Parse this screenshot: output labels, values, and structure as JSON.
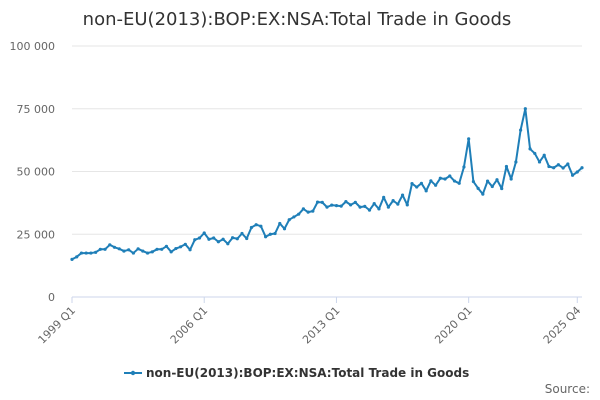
{
  "colors": {
    "series": "#1f7fb8",
    "grid": "#e6e6e6",
    "axis": "#ccd6eb"
  },
  "chart_data": {
    "type": "line",
    "title": "non-EU(2013):BOP:EX:NSA:Total Trade in Goods",
    "xlabel": "",
    "ylabel": "",
    "ylim": [
      0,
      100000
    ],
    "y_ticks": [
      {
        "value": 0,
        "label": "0"
      },
      {
        "value": 25000,
        "label": "25 000"
      },
      {
        "value": 50000,
        "label": "50 000"
      },
      {
        "value": 75000,
        "label": "75 000"
      },
      {
        "value": 100000,
        "label": "100 000"
      }
    ],
    "x_ticks": [
      {
        "index": 0,
        "label": "1999 Q1"
      },
      {
        "index": 28,
        "label": "2006 Q1"
      },
      {
        "index": 56,
        "label": "2013 Q1"
      },
      {
        "index": 84,
        "label": "2020 Q1"
      },
      {
        "index": 107,
        "label": "2025 Q4"
      }
    ],
    "legend": "bottom-center",
    "source_label": "Source:",
    "series": [
      {
        "name": "non-EU(2013):BOP:EX:NSA:Total Trade in Goods",
        "values": [
          15000,
          16000,
          17500,
          17500,
          17500,
          17800,
          19000,
          19000,
          20800,
          19800,
          19200,
          18300,
          18800,
          17500,
          19200,
          18300,
          17500,
          18000,
          19000,
          19000,
          20200,
          18000,
          19300,
          20000,
          21000,
          18800,
          22800,
          23500,
          25500,
          23000,
          23500,
          22000,
          23000,
          21200,
          23600,
          23200,
          25300,
          23300,
          27700,
          28800,
          28200,
          24000,
          25000,
          25300,
          29300,
          27200,
          30800,
          31900,
          33000,
          35100,
          33800,
          34200,
          37800,
          37700,
          35800,
          36600,
          36400,
          36200,
          38000,
          36700,
          37700,
          35800,
          36100,
          34600,
          37200,
          35100,
          39700,
          35800,
          38400,
          37000,
          40600,
          36700,
          45200,
          43800,
          45300,
          42300,
          46300,
          44500,
          47300,
          47000,
          48200,
          46200,
          45300,
          51800,
          63000,
          46000,
          43300,
          41000,
          46200,
          44000,
          46700,
          43200,
          52000,
          47000,
          53800,
          66500,
          75000,
          59000,
          57200,
          53800,
          56500,
          52000,
          51500,
          52700,
          51400,
          53000,
          48500,
          49800,
          51500
        ]
      }
    ]
  }
}
